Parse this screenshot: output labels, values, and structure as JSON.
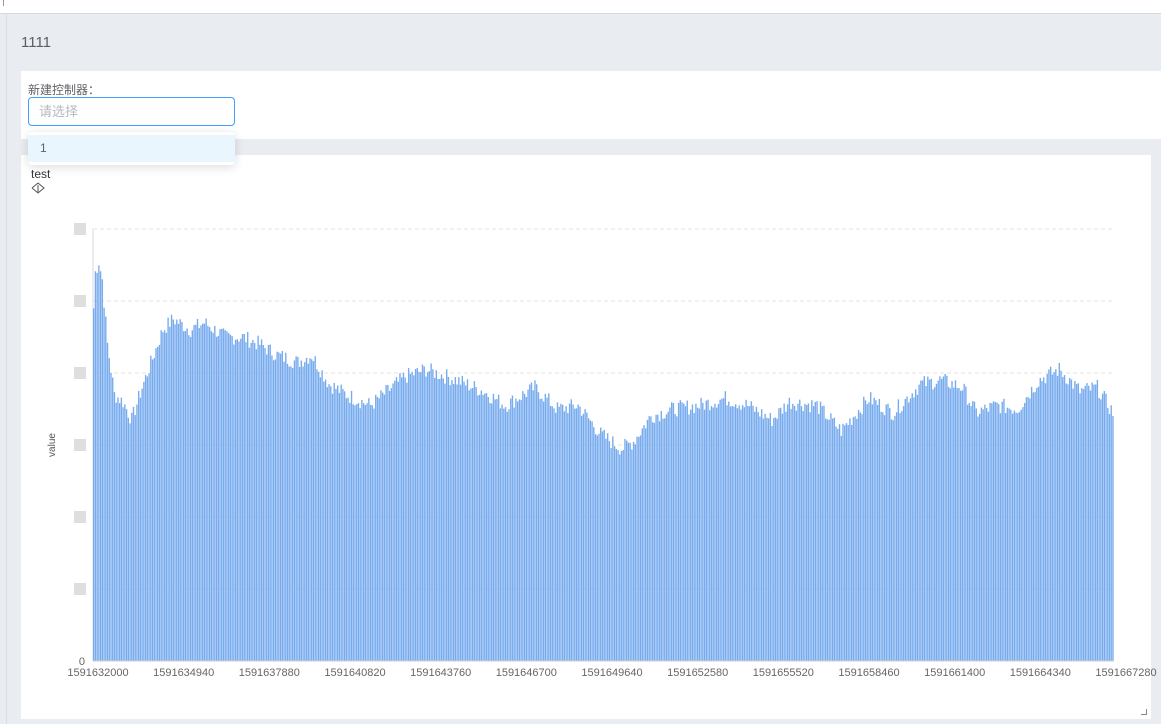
{
  "page": {
    "title": "1111"
  },
  "controller": {
    "label": "新建控制器：",
    "placeholder": "请选择",
    "options": [
      "1"
    ]
  },
  "chart_data": {
    "type": "bar",
    "title": "test",
    "xlabel": "",
    "ylabel": "value",
    "ylim": [
      0,
      6
    ],
    "yticks_visible": [
      "0"
    ],
    "grid": "horizontal-dashed",
    "color": "#77abee",
    "x_ticks": [
      "1591632000",
      "1591634940",
      "1591637880",
      "1591640820",
      "1591643760",
      "1591646700",
      "1591649640",
      "1591652580",
      "1591655520",
      "1591658460",
      "1591661400",
      "1591664340",
      "1591667280"
    ],
    "x_start": 1591632000,
    "x_step": 60,
    "bar_count": 590,
    "profile": [
      [
        0,
        4.9
      ],
      [
        1,
        5.4
      ],
      [
        3,
        5.55
      ],
      [
        5,
        5.3
      ],
      [
        8,
        4.4
      ],
      [
        12,
        3.7
      ],
      [
        17,
        3.6
      ],
      [
        22,
        3.35
      ],
      [
        28,
        3.8
      ],
      [
        34,
        4.2
      ],
      [
        40,
        4.6
      ],
      [
        46,
        4.75
      ],
      [
        56,
        4.6
      ],
      [
        64,
        4.7
      ],
      [
        76,
        4.5
      ],
      [
        86,
        4.5
      ],
      [
        96,
        4.4
      ],
      [
        106,
        4.25
      ],
      [
        118,
        4.15
      ],
      [
        126,
        4.25
      ],
      [
        136,
        3.85
      ],
      [
        146,
        3.7
      ],
      [
        160,
        3.55
      ],
      [
        170,
        3.75
      ],
      [
        180,
        3.95
      ],
      [
        192,
        4.05
      ],
      [
        210,
        3.9
      ],
      [
        225,
        3.75
      ],
      [
        238,
        3.55
      ],
      [
        255,
        3.8
      ],
      [
        268,
        3.5
      ],
      [
        280,
        3.55
      ],
      [
        293,
        3.15
      ],
      [
        305,
        2.95
      ],
      [
        312,
        3.05
      ],
      [
        322,
        3.4
      ],
      [
        335,
        3.5
      ],
      [
        350,
        3.55
      ],
      [
        365,
        3.65
      ],
      [
        378,
        3.55
      ],
      [
        392,
        3.35
      ],
      [
        402,
        3.6
      ],
      [
        418,
        3.55
      ],
      [
        432,
        3.2
      ],
      [
        448,
        3.65
      ],
      [
        462,
        3.45
      ],
      [
        478,
        3.85
      ],
      [
        490,
        3.9
      ],
      [
        502,
        3.8
      ],
      [
        510,
        3.45
      ],
      [
        522,
        3.55
      ],
      [
        534,
        3.5
      ],
      [
        546,
        3.9
      ],
      [
        558,
        4.05
      ],
      [
        570,
        3.75
      ],
      [
        580,
        3.8
      ],
      [
        589,
        3.45
      ]
    ]
  }
}
